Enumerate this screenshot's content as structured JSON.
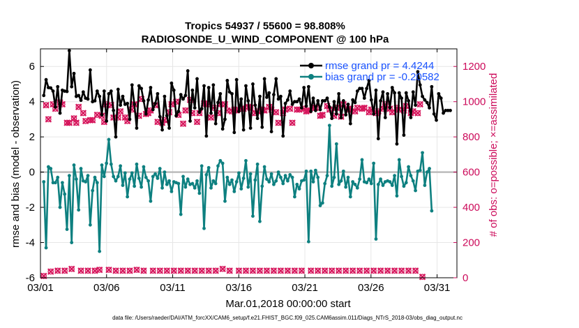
{
  "chart_data": {
    "type": "line",
    "title_line1": "Tropics 54937 / 55600 = 98.808%",
    "title_line2": "RADIOSONDE_U_WIND_COMPONENT @ 100 hPa",
    "xlabel": "Mar.01,2018 00:00:00 start",
    "ylabel": "rmse and bias (model - observation)",
    "y2label": "# of obs: o=possible; ×=assimilated",
    "footnote": "data file: /Users/raeder/DAI/ATM_forcXX/CAM6_setup/f.e21.FHIST_BGC.f09_025.CAM6assim.011/Diags_NTrS_2018-03/obs_diag_output.nc",
    "xlim": [
      0,
      31.5
    ],
    "ylim": [
      -6,
      7
    ],
    "y2lim": [
      0,
      1300
    ],
    "x_ticks": [
      0,
      5,
      10,
      15,
      20,
      25,
      30
    ],
    "x_tick_labels": [
      "03/01",
      "03/06",
      "03/11",
      "03/16",
      "03/21",
      "03/26",
      "03/31"
    ],
    "y_ticks": [
      -6,
      -4,
      -2,
      0,
      2,
      4,
      6
    ],
    "y_tick_labels": [
      "-6",
      "-4",
      "-2",
      "0",
      "2",
      "4",
      "6"
    ],
    "y2_ticks": [
      0,
      200,
      400,
      600,
      800,
      1000,
      1200
    ],
    "y2_tick_labels": [
      "0",
      "200",
      "400",
      "600",
      "800",
      "1000",
      "1200"
    ],
    "colors": {
      "rmse": "#000000",
      "bias": "#0e8080",
      "obs": "#d6165c",
      "zero": "#bbbbbb"
    },
    "series": [
      {
        "name": "rmse grand pr = 4.4244",
        "values": [
          4.35,
          5.25,
          4.8,
          4.78,
          4.6,
          3.7,
          4.85,
          3.35,
          4.65,
          4.6,
          4.58,
          6.9,
          4.85,
          5.6,
          4.3,
          4.35,
          4.08,
          4.55,
          4.2,
          4.15,
          5.8,
          4.0,
          4.05,
          4.6,
          4.3,
          3.25,
          4.6,
          2.9,
          4.45,
          4.6,
          3.5,
          2.0,
          4.7,
          3.8,
          4.3,
          3.85,
          3.9,
          3.0,
          4.95,
          3.85,
          2.5,
          4.9,
          4.75,
          4.05,
          3.3,
          4.1,
          4.8,
          3.55,
          3.9,
          4.45,
          3.15,
          2.4,
          4.3,
          3.2,
          2.5,
          5.05,
          4.65,
          3.2,
          3.45,
          4.4,
          4.15,
          4.35,
          5.75,
          2.9,
          4.65,
          3.65,
          5.3,
          3.4,
          3.6,
          4.9,
          2.05,
          4.8,
          3.35,
          4.95,
          2.75,
          3.95,
          4.45,
          2.45,
          3.0,
          5.2,
          4.55,
          4.45,
          2.25,
          5.25,
          3.45,
          4.15,
          2.4,
          4.9,
          4.05,
          2.5,
          5.0,
          3.8,
          3.05,
          4.3,
          2.55,
          5.3,
          4.25,
          4.5,
          2.3,
          4.4,
          5.3,
          4.15,
          4.3,
          2.05,
          3.9,
          4.1,
          4.6,
          3.85,
          4.0,
          4.0,
          4.15,
          3.65,
          4.8,
          3.75,
          4.85,
          3.45,
          4.2,
          3.5,
          4.05,
          3.55,
          4.05,
          4.05,
          4.2,
          3.7,
          3.05,
          4.0,
          3.3,
          4.45,
          3.1,
          4.05,
          3.25,
          3.85,
          2.75,
          4.1,
          3.95,
          4.6,
          4.75,
          4.75,
          4.2,
          4.75,
          5.2,
          4.1,
          3.3,
          4.65,
          1.9,
          4.05,
          4.55,
          3.1,
          4.45,
          3.65,
          4.8,
          4.5,
          1.6,
          4.5,
          4.2,
          2.1,
          4.5,
          4.05,
          3.1,
          4.55,
          3.8,
          5.7,
          4.95,
          4.3,
          4.1,
          3.95,
          3.65,
          4.85,
          3.3,
          2.95,
          4.45,
          4.2,
          3.35,
          3.5,
          3.5,
          3.5
        ]
      },
      {
        "name": "bias grand pr = -0.20582",
        "values": [
          -0.55,
          -4.3,
          0.3,
          0.2,
          -0.6,
          -0.6,
          -0.3,
          -2.0,
          -0.6,
          -1.25,
          -3.25,
          -0.2,
          -4.0,
          0.4,
          -0.4,
          -2.15,
          0.2,
          -0.5,
          -0.55,
          -0.2,
          -3.0,
          -1.05,
          -0.3,
          -0.6,
          -4.5,
          0.4,
          -0.25,
          0.5,
          1.85,
          0.45,
          -0.25,
          -0.5,
          -0.25,
          0.35,
          -0.75,
          -0.05,
          -1.4,
          -0.4,
          -0.05,
          -0.8,
          0.45,
          -0.35,
          -0.85,
          0.3,
          -0.3,
          -0.5,
          -1.65,
          -0.25,
          -0.1,
          -0.35,
          0.2,
          -0.9,
          0.0,
          -0.7,
          -0.5,
          -1.1,
          -0.55,
          -0.6,
          -0.65,
          -2.4,
          -0.25,
          -0.85,
          -0.4,
          -0.7,
          -0.65,
          -0.9,
          -0.5,
          -1.2,
          0.35,
          -3.2,
          -0.15,
          0.25,
          -0.9,
          -0.5,
          -0.65,
          0.35,
          0.65,
          0.5,
          -1.65,
          -0.3,
          -0.7,
          -0.45,
          -1.1,
          -0.55,
          -0.05,
          -0.95,
          -0.35,
          0.65,
          -0.85,
          -0.1,
          -2.5,
          -0.45,
          0.45,
          -2.8,
          -0.8,
          0.3,
          -0.4,
          -0.55,
          -0.1,
          -0.7,
          -0.5,
          0.0,
          -0.3,
          -0.65,
          -0.2,
          -0.5,
          -0.15,
          -0.3,
          -1.4,
          -0.7,
          -0.95,
          -0.5,
          -0.45,
          0.05,
          -3.95,
          0.05,
          -0.55,
          0.1,
          -0.3,
          -1.9,
          -1.75,
          -0.65,
          -0.2,
          2.65,
          -0.8,
          -0.3,
          1.6,
          -0.7,
          -0.5,
          0.05,
          -0.85,
          -0.3,
          -1.4,
          -0.55,
          -0.7,
          -0.9,
          -0.4,
          0.7,
          -0.55,
          -0.6,
          -0.4,
          -0.65,
          0.5,
          -3.8,
          -0.7,
          -0.4,
          -0.75,
          -0.55,
          -0.5,
          -0.55,
          -0.75,
          -0.2,
          -1.35,
          0.7,
          -0.25,
          -0.8,
          -0.6,
          0.3,
          -0.2,
          -0.5,
          -1.05,
          0.05,
          0.1,
          1.1,
          -0.75,
          0.0,
          0.2,
          -2.2
        ]
      },
      {
        "name": "obs possible",
        "values": [
          10,
          980,
          900,
          35,
          985,
          960,
          40,
          995,
          985,
          40,
          880,
          880,
          50,
          905,
          880,
          970,
          40,
          935,
          890,
          40,
          895,
          895,
          40,
          925,
          45,
          920,
          885,
          985,
          45,
          980,
          910,
          40,
          910,
          945,
          40,
          910,
          890,
          40,
          955,
          985,
          45,
          920,
          1015,
          40,
          930,
          935,
          950,
          40,
          980,
          885,
          40,
          880,
          895,
          40,
          940,
          985,
          40,
          1000,
          925,
          40,
          875,
          950,
          40,
          1010,
          935,
          40,
          885,
          935,
          40,
          990,
          985,
          40,
          910,
          965,
          40,
          935,
          985,
          50,
          985,
          950,
          40,
          945,
          955,
          950,
          40,
          960,
          960,
          40,
          970,
          965,
          40,
          935,
          945,
          40,
          955,
          950,
          40,
          970,
          955,
          40,
          940,
          880,
          40,
          935,
          955,
          40,
          960,
          880,
          40,
          955,
          955,
          40,
          960,
          945,
          950,
          40,
          965,
          965,
          40,
          920,
          925,
          40,
          975,
          955,
          40,
          920,
          965,
          40,
          915,
          985,
          40,
          955,
          960,
          40,
          945,
          965,
          40,
          960,
          965,
          40,
          940,
          955,
          40,
          935,
          945,
          40,
          960,
          985,
          40,
          960,
          940,
          40,
          965,
          955,
          40,
          950,
          975,
          40,
          935,
          945,
          40,
          935,
          985,
          5
        ]
      },
      {
        "name": "obs assimilated",
        "values": [
          10,
          980,
          900,
          35,
          985,
          960,
          40,
          995,
          985,
          40,
          880,
          880,
          50,
          905,
          880,
          970,
          40,
          935,
          890,
          40,
          895,
          895,
          40,
          925,
          45,
          920,
          885,
          985,
          45,
          980,
          910,
          40,
          910,
          945,
          40,
          910,
          890,
          40,
          955,
          985,
          45,
          920,
          1015,
          40,
          930,
          935,
          950,
          40,
          980,
          885,
          40,
          880,
          895,
          40,
          940,
          985,
          40,
          1000,
          925,
          40,
          875,
          950,
          40,
          1010,
          935,
          40,
          885,
          935,
          40,
          990,
          985,
          40,
          910,
          965,
          40,
          935,
          985,
          50,
          985,
          950,
          40,
          945,
          955,
          950,
          40,
          960,
          960,
          40,
          970,
          965,
          40,
          935,
          945,
          40,
          955,
          950,
          40,
          970,
          955,
          40,
          940,
          880,
          40,
          935,
          955,
          40,
          960,
          880,
          40,
          955,
          955,
          40,
          960,
          945,
          950,
          40,
          965,
          965,
          40,
          920,
          925,
          40,
          975,
          955,
          40,
          920,
          965,
          40,
          915,
          985,
          40,
          955,
          960,
          40,
          945,
          965,
          40,
          960,
          965,
          40,
          940,
          955,
          40,
          935,
          945,
          40,
          960,
          985,
          40,
          960,
          940,
          40,
          965,
          955,
          40,
          950,
          975,
          40,
          935,
          945,
          40,
          935,
          985,
          5
        ]
      }
    ]
  }
}
